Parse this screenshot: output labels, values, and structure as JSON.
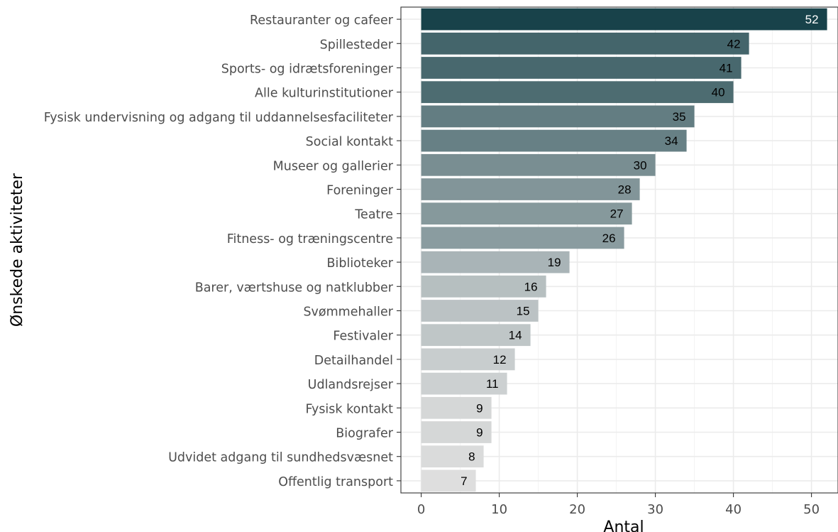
{
  "chart_data": {
    "type": "bar",
    "orientation": "horizontal",
    "xlabel": "Antal",
    "ylabel": "Ønskede aktiviteter",
    "xlim": [
      -2.6,
      53.4
    ],
    "xticks": [
      0,
      10,
      20,
      30,
      40,
      50
    ],
    "grid": true,
    "categories": [
      "Restauranter og cafeer",
      "Spillesteder",
      "Sports- og idrætsforeninger",
      "Alle kulturinstitutioner",
      "Fysisk undervisning og adgang til uddannelsesfaciliteter",
      "Social kontakt",
      "Museer og gallerier",
      "Foreninger",
      "Teatre",
      "Fitness- og træningscentre",
      "Biblioteker",
      "Barer, værtshuse og natklubber",
      "Svømmehaller",
      "Festivaler",
      "Detailhandel",
      "Udlandsrejser",
      "Fysisk kontakt",
      "Biografer",
      "Udvidet adgang til sundhedsvæsnet",
      "Offentlig transport"
    ],
    "values": [
      52,
      42,
      41,
      40,
      35,
      34,
      30,
      28,
      27,
      26,
      19,
      16,
      15,
      14,
      12,
      11,
      9,
      9,
      8,
      7
    ],
    "colors": {
      "high": "#18424a",
      "low": "#dedede",
      "label_light": "#ffffff",
      "label_dark": "#000000"
    }
  }
}
